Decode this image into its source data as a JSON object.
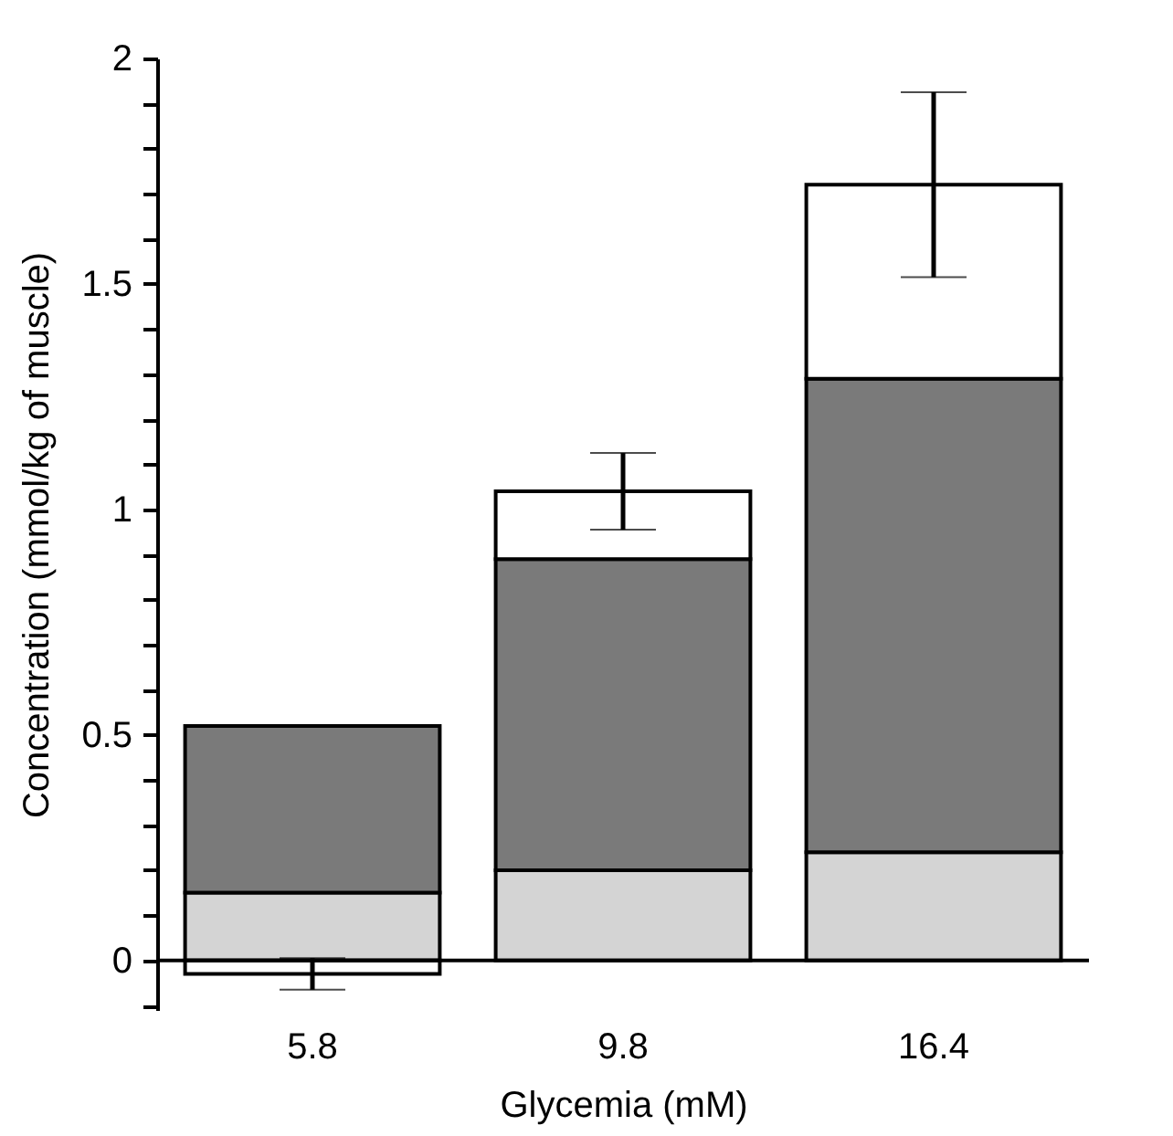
{
  "chart_data": {
    "type": "bar",
    "stacked": true,
    "xlabel": "Glycemia (mM)",
    "ylabel": "Concentration (mmol/kg of muscle)",
    "categories": [
      "5.8",
      "9.8",
      "16.4"
    ],
    "series": [
      {
        "color": "#d4d4d4",
        "values": [
          0.15,
          0.2,
          0.24
        ]
      },
      {
        "color": "#7a7a7a",
        "values": [
          0.37,
          0.69,
          1.05
        ]
      },
      {
        "color": "#ffffff",
        "values": [
          -0.03,
          0.15,
          0.43
        ],
        "errors": [
          0.035,
          0.085,
          0.205
        ]
      }
    ],
    "ylim": [
      -0.11,
      2
    ],
    "yticks": [
      {
        "value": -0.1,
        "label": null
      },
      0,
      {
        "value": 0.1,
        "label": null
      },
      {
        "value": 0.2,
        "label": null
      },
      {
        "value": 0.3,
        "label": null
      },
      {
        "value": 0.4,
        "label": null
      },
      0.5,
      {
        "value": 0.6,
        "label": null
      },
      {
        "value": 0.7,
        "label": null
      },
      {
        "value": 0.8,
        "label": null
      },
      {
        "value": 0.9,
        "label": null
      },
      1,
      {
        "value": 1.1,
        "label": null
      },
      {
        "value": 1.2,
        "label": null
      },
      {
        "value": 1.3,
        "label": null
      },
      {
        "value": 1.4,
        "label": null
      },
      1.5,
      {
        "value": 1.6,
        "label": null
      },
      {
        "value": 1.7,
        "label": null
      },
      {
        "value": 1.8,
        "label": null
      },
      {
        "value": 1.9,
        "label": null
      },
      2
    ],
    "grid": false,
    "legend": false
  }
}
